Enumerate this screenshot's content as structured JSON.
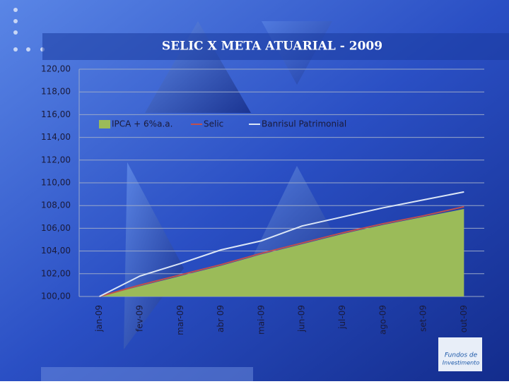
{
  "chart_data": {
    "type": "area-line",
    "title": "SELIC X META ATUARIAL - 2009",
    "categories": [
      "jan-09",
      "fev-09",
      "mar-09",
      "abr 09",
      "mai-09",
      "jun-09",
      "jul-09",
      "ago-09",
      "set-09",
      "out-09"
    ],
    "series": [
      {
        "name": "IPCA + 6%a.a.",
        "kind": "area",
        "color": "#9bbb59",
        "values": [
          100.0,
          100.9,
          101.8,
          102.7,
          103.7,
          104.6,
          105.5,
          106.3,
          107.0,
          107.7
        ]
      },
      {
        "name": "Selic",
        "kind": "line",
        "color": "#c0504d",
        "values": [
          100.0,
          101.0,
          101.9,
          102.8,
          103.8,
          104.7,
          105.6,
          106.4,
          107.1,
          107.9
        ]
      },
      {
        "name": "Banrisul Patrimonial",
        "kind": "line",
        "color": "#dbe6f6",
        "values": [
          100.0,
          101.8,
          102.9,
          104.1,
          104.9,
          106.2,
          107.0,
          107.8,
          108.5,
          109.2
        ]
      }
    ],
    "ylim": [
      100,
      120
    ],
    "yticks": [
      {
        "value": 100,
        "label": "100,00"
      },
      {
        "value": 102,
        "label": "102,00"
      },
      {
        "value": 104,
        "label": "104,00"
      },
      {
        "value": 106,
        "label": "106,00"
      },
      {
        "value": 108,
        "label": "108,00"
      },
      {
        "value": 110,
        "label": "110,00"
      },
      {
        "value": 112,
        "label": "112,00"
      },
      {
        "value": 114,
        "label": "114,00"
      },
      {
        "value": 116,
        "label": "116,00"
      },
      {
        "value": 118,
        "label": "118,00"
      },
      {
        "value": 120,
        "label": "120,00"
      }
    ],
    "grid": true
  },
  "logo": {
    "line1": "Fundos de",
    "line2": "Investimento"
  }
}
